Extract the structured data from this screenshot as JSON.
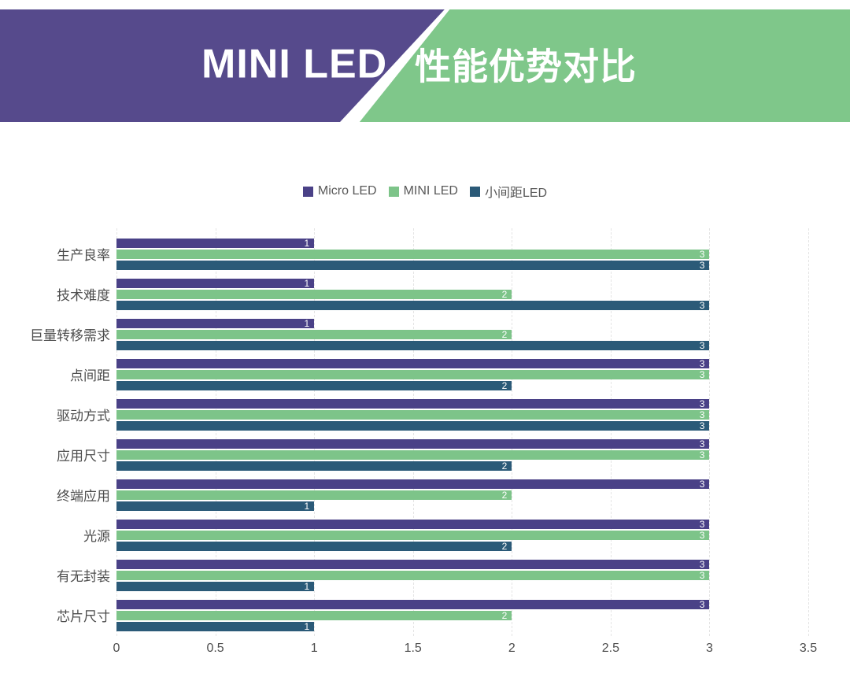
{
  "header": {
    "title_left": "MINI LED",
    "title_right": "性能优势对比"
  },
  "colors": {
    "header_purple": "#564a8c",
    "header_green": "#7fc78a",
    "series_micro": "#4a4187",
    "series_mini": "#7dc489",
    "series_small_pitch": "#2b5a78",
    "grid_line": "#e4e4e4",
    "axis_text": "#4d4d4d",
    "legend_text": "#595959",
    "bar_value_text": "#ffffff"
  },
  "chart_data": {
    "type": "bar",
    "orientation": "horizontal",
    "title": "MINI LED 性能优势对比",
    "categories": [
      "生产良率",
      "技术难度",
      "巨量转移需求",
      "点间距",
      "驱动方式",
      "应用尺寸",
      "终端应用",
      "光源",
      "有无封装",
      "芯片尺寸"
    ],
    "series": [
      {
        "name": "Micro LED",
        "key": "micro-led",
        "color": "#4a4187",
        "values": [
          1,
          1,
          1,
          3,
          3,
          3,
          3,
          3,
          3,
          3
        ]
      },
      {
        "name": "MINI LED",
        "key": "mini-led",
        "color": "#7dc489",
        "values": [
          3,
          2,
          2,
          3,
          3,
          3,
          2,
          3,
          3,
          2
        ]
      },
      {
        "name": "小间距LED",
        "key": "small-pitch-led",
        "color": "#2b5a78",
        "values": [
          3,
          3,
          3,
          2,
          3,
          2,
          1,
          2,
          1,
          1
        ]
      }
    ],
    "xlim": [
      0,
      3.5
    ],
    "xticks": [
      0,
      0.5,
      1,
      1.5,
      2,
      2.5,
      3,
      3.5
    ],
    "xtick_labels": [
      "0",
      "0.5",
      "1",
      "1.5",
      "2",
      "2.5",
      "3",
      "3.5"
    ],
    "legend_position": "top-center",
    "grid": "vertical-dashed",
    "bar_value_labels": true
  }
}
